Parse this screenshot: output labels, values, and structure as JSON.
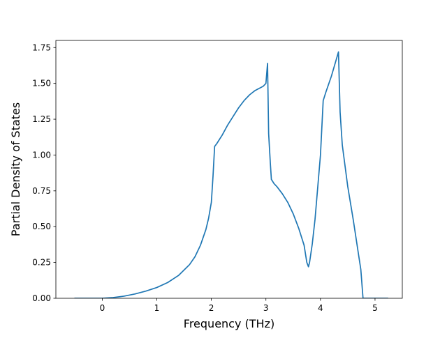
{
  "chart_data": {
    "type": "line",
    "xlabel": "Frequency (THz)",
    "ylabel": "Partial Density of States",
    "xlim": [
      -0.85,
      5.5
    ],
    "ylim": [
      0.0,
      1.8
    ],
    "xticks": [
      0,
      1,
      2,
      3,
      4,
      5
    ],
    "yticks": [
      0.0,
      0.25,
      0.5,
      0.75,
      1.0,
      1.25,
      1.5,
      1.75
    ],
    "xtick_labels": [
      "0",
      "1",
      "2",
      "3",
      "4",
      "5"
    ],
    "ytick_labels": [
      "0.00",
      "0.25",
      "0.50",
      "0.75",
      "1.00",
      "1.25",
      "1.50",
      "1.75"
    ],
    "grid": false,
    "series": [
      {
        "color": "#1f77b4",
        "x": [
          -0.5,
          0.0,
          0.2,
          0.4,
          0.6,
          0.8,
          1.0,
          1.2,
          1.4,
          1.6,
          1.7,
          1.8,
          1.9,
          1.95,
          2.0,
          2.03,
          2.06,
          2.1,
          2.2,
          2.3,
          2.4,
          2.5,
          2.6,
          2.7,
          2.8,
          2.9,
          2.95,
          3.0,
          3.03,
          3.05,
          3.08,
          3.1,
          3.15,
          3.2,
          3.3,
          3.4,
          3.5,
          3.6,
          3.65,
          3.7,
          3.75,
          3.78,
          3.8,
          3.85,
          3.9,
          4.0,
          4.05,
          4.1,
          4.2,
          4.3,
          4.33,
          4.36,
          4.4,
          4.5,
          4.6,
          4.7,
          4.74,
          4.78,
          5.0,
          5.23
        ],
        "y": [
          0.0,
          0.0,
          0.005,
          0.015,
          0.03,
          0.05,
          0.075,
          0.11,
          0.16,
          0.235,
          0.29,
          0.37,
          0.48,
          0.56,
          0.67,
          0.85,
          1.06,
          1.08,
          1.14,
          1.21,
          1.27,
          1.33,
          1.38,
          1.42,
          1.45,
          1.47,
          1.48,
          1.5,
          1.64,
          1.15,
          0.95,
          0.83,
          0.8,
          0.78,
          0.73,
          0.67,
          0.59,
          0.49,
          0.43,
          0.37,
          0.25,
          0.22,
          0.25,
          0.38,
          0.55,
          1.0,
          1.38,
          1.44,
          1.55,
          1.68,
          1.72,
          1.3,
          1.07,
          0.78,
          0.55,
          0.3,
          0.2,
          0.0,
          0.0,
          0.0
        ]
      }
    ]
  }
}
